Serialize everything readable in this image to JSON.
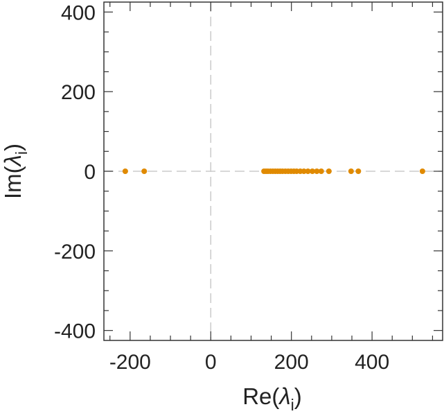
{
  "chart_data": {
    "type": "scatter",
    "xlabel": "Re(λi)",
    "ylabel": "Im(λi)",
    "xlabel_parts": {
      "prefix": "Re(",
      "symbol": "λ",
      "sub": "i",
      "suffix": ")"
    },
    "ylabel_parts": {
      "prefix": "Im(",
      "symbol": "λ",
      "sub": "i",
      "suffix": ")"
    },
    "xlim": [
      -265,
      575
    ],
    "ylim": [
      -425,
      425
    ],
    "x_ticks": [
      -200,
      0,
      200,
      400
    ],
    "x_tick_labels": [
      "-200",
      "0",
      "200",
      "400"
    ],
    "y_ticks": [
      -400,
      -200,
      0,
      200,
      400
    ],
    "y_tick_labels": [
      "-400",
      "-200",
      "0",
      "200",
      "400"
    ],
    "grid": false,
    "zero_lines": true,
    "marker_color": "#e08a00",
    "zero_line_color": "#cccccc",
    "series": [
      {
        "points": [
          {
            "x": -212,
            "y": 0
          },
          {
            "x": -165,
            "y": 0
          },
          {
            "x": 132,
            "y": 0
          },
          {
            "x": 137,
            "y": 0
          },
          {
            "x": 142,
            "y": 0
          },
          {
            "x": 148,
            "y": 0
          },
          {
            "x": 154,
            "y": 0
          },
          {
            "x": 160,
            "y": 0
          },
          {
            "x": 166,
            "y": 0
          },
          {
            "x": 172,
            "y": 0
          },
          {
            "x": 178,
            "y": 0
          },
          {
            "x": 185,
            "y": 0
          },
          {
            "x": 192,
            "y": 0
          },
          {
            "x": 199,
            "y": 0
          },
          {
            "x": 206,
            "y": 0
          },
          {
            "x": 213,
            "y": 0
          },
          {
            "x": 222,
            "y": 0
          },
          {
            "x": 231,
            "y": 0
          },
          {
            "x": 241,
            "y": 0
          },
          {
            "x": 252,
            "y": 0
          },
          {
            "x": 263,
            "y": 0
          },
          {
            "x": 274,
            "y": 0
          },
          {
            "x": 293,
            "y": 0
          },
          {
            "x": 348,
            "y": 0
          },
          {
            "x": 366,
            "y": 0
          },
          {
            "x": 525,
            "y": 0
          }
        ]
      }
    ]
  }
}
